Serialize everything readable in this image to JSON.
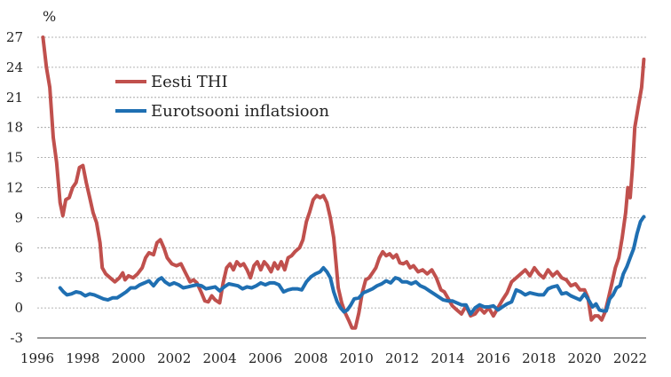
{
  "chart_data": {
    "type": "line",
    "unit_label": "%",
    "ylim": [
      -3,
      27
    ],
    "xlim": [
      1996,
      2022.7
    ],
    "y_ticks": [
      "-3",
      "0",
      "3",
      "6",
      "9",
      "12",
      "15",
      "18",
      "21",
      "24",
      "27"
    ],
    "x_ticks": [
      "1996",
      "1998",
      "2000",
      "2002",
      "2004",
      "2006",
      "2008",
      "2010",
      "2012",
      "2014",
      "2016",
      "2018",
      "2020",
      "2022"
    ],
    "grid": "horizontal dashed",
    "legend_position": "top-left",
    "series": [
      {
        "name": "Eesti THI",
        "color": "#c0504d",
        "points": [
          [
            1996.25,
            27.0
          ],
          [
            1996.4,
            24.0
          ],
          [
            1996.55,
            22.0
          ],
          [
            1996.7,
            17.0
          ],
          [
            1996.85,
            14.5
          ],
          [
            1997.0,
            10.5
          ],
          [
            1997.12,
            9.2
          ],
          [
            1997.25,
            10.8
          ],
          [
            1997.4,
            11.0
          ],
          [
            1997.55,
            12.0
          ],
          [
            1997.7,
            12.5
          ],
          [
            1997.85,
            14.0
          ],
          [
            1998.0,
            14.2
          ],
          [
            1998.15,
            12.5
          ],
          [
            1998.3,
            11.0
          ],
          [
            1998.45,
            9.5
          ],
          [
            1998.6,
            8.5
          ],
          [
            1998.75,
            6.5
          ],
          [
            1998.85,
            4.0
          ],
          [
            1999.0,
            3.4
          ],
          [
            1999.2,
            3.0
          ],
          [
            1999.4,
            2.6
          ],
          [
            1999.6,
            3.0
          ],
          [
            1999.75,
            3.5
          ],
          [
            1999.85,
            2.8
          ],
          [
            2000.0,
            3.2
          ],
          [
            2000.2,
            3.0
          ],
          [
            2000.4,
            3.4
          ],
          [
            2000.6,
            4.0
          ],
          [
            2000.75,
            5.0
          ],
          [
            2000.9,
            5.5
          ],
          [
            2001.1,
            5.3
          ],
          [
            2001.25,
            6.5
          ],
          [
            2001.4,
            6.8
          ],
          [
            2001.55,
            6.0
          ],
          [
            2001.7,
            5.0
          ],
          [
            2001.9,
            4.4
          ],
          [
            2002.1,
            4.2
          ],
          [
            2002.3,
            4.4
          ],
          [
            2002.5,
            3.5
          ],
          [
            2002.7,
            2.6
          ],
          [
            2002.85,
            2.8
          ],
          [
            2003.0,
            2.5
          ],
          [
            2003.2,
            1.5
          ],
          [
            2003.35,
            0.7
          ],
          [
            2003.5,
            0.6
          ],
          [
            2003.65,
            1.2
          ],
          [
            2003.8,
            0.8
          ],
          [
            2004.0,
            0.5
          ],
          [
            2004.15,
            2.5
          ],
          [
            2004.3,
            4.0
          ],
          [
            2004.45,
            4.4
          ],
          [
            2004.6,
            3.8
          ],
          [
            2004.75,
            4.6
          ],
          [
            2004.9,
            4.2
          ],
          [
            2005.05,
            4.4
          ],
          [
            2005.2,
            3.8
          ],
          [
            2005.35,
            3.0
          ],
          [
            2005.5,
            4.2
          ],
          [
            2005.65,
            4.6
          ],
          [
            2005.8,
            3.8
          ],
          [
            2005.95,
            4.6
          ],
          [
            2006.1,
            4.2
          ],
          [
            2006.25,
            3.6
          ],
          [
            2006.4,
            4.5
          ],
          [
            2006.55,
            3.9
          ],
          [
            2006.7,
            4.6
          ],
          [
            2006.85,
            3.8
          ],
          [
            2007.0,
            5.0
          ],
          [
            2007.15,
            5.2
          ],
          [
            2007.3,
            5.6
          ],
          [
            2007.5,
            6.0
          ],
          [
            2007.65,
            6.8
          ],
          [
            2007.8,
            8.6
          ],
          [
            2007.95,
            9.6
          ],
          [
            2008.1,
            10.8
          ],
          [
            2008.25,
            11.2
          ],
          [
            2008.4,
            11.0
          ],
          [
            2008.55,
            11.2
          ],
          [
            2008.7,
            10.5
          ],
          [
            2008.85,
            9.0
          ],
          [
            2009.0,
            7.0
          ],
          [
            2009.1,
            4.5
          ],
          [
            2009.2,
            2.0
          ],
          [
            2009.35,
            0.5
          ],
          [
            2009.5,
            -0.5
          ],
          [
            2009.65,
            -1.2
          ],
          [
            2009.8,
            -2.0
          ],
          [
            2009.95,
            -2.0
          ],
          [
            2010.1,
            -0.5
          ],
          [
            2010.25,
            1.5
          ],
          [
            2010.4,
            2.8
          ],
          [
            2010.55,
            3.0
          ],
          [
            2010.7,
            3.5
          ],
          [
            2010.85,
            4.0
          ],
          [
            2011.0,
            5.0
          ],
          [
            2011.15,
            5.6
          ],
          [
            2011.3,
            5.2
          ],
          [
            2011.45,
            5.4
          ],
          [
            2011.6,
            5.0
          ],
          [
            2011.75,
            5.3
          ],
          [
            2011.9,
            4.5
          ],
          [
            2012.05,
            4.4
          ],
          [
            2012.2,
            4.6
          ],
          [
            2012.35,
            4.0
          ],
          [
            2012.5,
            4.2
          ],
          [
            2012.7,
            3.6
          ],
          [
            2012.9,
            3.8
          ],
          [
            2013.1,
            3.4
          ],
          [
            2013.3,
            3.8
          ],
          [
            2013.5,
            3.0
          ],
          [
            2013.7,
            1.8
          ],
          [
            2013.85,
            1.6
          ],
          [
            2014.0,
            1.0
          ],
          [
            2014.2,
            0.2
          ],
          [
            2014.4,
            -0.2
          ],
          [
            2014.6,
            -0.6
          ],
          [
            2014.8,
            0.2
          ],
          [
            2015.0,
            -0.8
          ],
          [
            2015.2,
            -0.6
          ],
          [
            2015.4,
            0.0
          ],
          [
            2015.6,
            -0.5
          ],
          [
            2015.8,
            0.0
          ],
          [
            2016.0,
            -0.8
          ],
          [
            2016.2,
            0.0
          ],
          [
            2016.4,
            0.8
          ],
          [
            2016.6,
            1.5
          ],
          [
            2016.8,
            2.6
          ],
          [
            2017.0,
            3.0
          ],
          [
            2017.2,
            3.4
          ],
          [
            2017.4,
            3.8
          ],
          [
            2017.6,
            3.2
          ],
          [
            2017.8,
            4.0
          ],
          [
            2018.0,
            3.4
          ],
          [
            2018.2,
            3.0
          ],
          [
            2018.4,
            3.8
          ],
          [
            2018.6,
            3.2
          ],
          [
            2018.8,
            3.6
          ],
          [
            2019.0,
            3.0
          ],
          [
            2019.2,
            2.8
          ],
          [
            2019.4,
            2.2
          ],
          [
            2019.6,
            2.4
          ],
          [
            2019.8,
            1.8
          ],
          [
            2020.0,
            1.8
          ],
          [
            2020.15,
            1.0
          ],
          [
            2020.3,
            -1.2
          ],
          [
            2020.45,
            -0.8
          ],
          [
            2020.6,
            -0.8
          ],
          [
            2020.75,
            -1.2
          ],
          [
            2020.9,
            -0.4
          ],
          [
            2021.05,
            1.0
          ],
          [
            2021.2,
            2.5
          ],
          [
            2021.35,
            4.0
          ],
          [
            2021.5,
            5.0
          ],
          [
            2021.65,
            7.0
          ],
          [
            2021.8,
            9.5
          ],
          [
            2021.9,
            12.0
          ],
          [
            2022.0,
            11.0
          ],
          [
            2022.1,
            14.0
          ],
          [
            2022.2,
            18.0
          ],
          [
            2022.35,
            20.0
          ],
          [
            2022.5,
            22.0
          ],
          [
            2022.6,
            24.8
          ]
        ]
      },
      {
        "name": "Eurotsooni inflatsioon",
        "color": "#1f6fb2",
        "points": [
          [
            1997.0,
            2.0
          ],
          [
            1997.15,
            1.6
          ],
          [
            1997.3,
            1.3
          ],
          [
            1997.5,
            1.4
          ],
          [
            1997.7,
            1.6
          ],
          [
            1997.9,
            1.5
          ],
          [
            1998.1,
            1.2
          ],
          [
            1998.3,
            1.4
          ],
          [
            1998.5,
            1.3
          ],
          [
            1998.7,
            1.1
          ],
          [
            1998.9,
            0.9
          ],
          [
            1999.1,
            0.8
          ],
          [
            1999.3,
            1.0
          ],
          [
            1999.5,
            1.0
          ],
          [
            1999.7,
            1.3
          ],
          [
            1999.9,
            1.6
          ],
          [
            2000.1,
            2.0
          ],
          [
            2000.3,
            2.0
          ],
          [
            2000.5,
            2.3
          ],
          [
            2000.7,
            2.5
          ],
          [
            2000.9,
            2.7
          ],
          [
            2001.1,
            2.2
          ],
          [
            2001.3,
            2.8
          ],
          [
            2001.45,
            3.0
          ],
          [
            2001.6,
            2.6
          ],
          [
            2001.8,
            2.3
          ],
          [
            2002.0,
            2.5
          ],
          [
            2002.2,
            2.3
          ],
          [
            2002.4,
            2.0
          ],
          [
            2002.6,
            2.1
          ],
          [
            2002.8,
            2.2
          ],
          [
            2003.0,
            2.3
          ],
          [
            2003.2,
            2.2
          ],
          [
            2003.4,
            1.9
          ],
          [
            2003.6,
            2.0
          ],
          [
            2003.8,
            2.1
          ],
          [
            2004.0,
            1.7
          ],
          [
            2004.2,
            2.1
          ],
          [
            2004.4,
            2.4
          ],
          [
            2004.6,
            2.3
          ],
          [
            2004.8,
            2.2
          ],
          [
            2005.0,
            1.9
          ],
          [
            2005.2,
            2.1
          ],
          [
            2005.4,
            2.0
          ],
          [
            2005.6,
            2.2
          ],
          [
            2005.8,
            2.5
          ],
          [
            2006.0,
            2.3
          ],
          [
            2006.2,
            2.5
          ],
          [
            2006.4,
            2.5
          ],
          [
            2006.6,
            2.3
          ],
          [
            2006.8,
            1.6
          ],
          [
            2007.0,
            1.8
          ],
          [
            2007.2,
            1.9
          ],
          [
            2007.4,
            1.9
          ],
          [
            2007.6,
            1.8
          ],
          [
            2007.8,
            2.6
          ],
          [
            2008.0,
            3.1
          ],
          [
            2008.2,
            3.4
          ],
          [
            2008.4,
            3.6
          ],
          [
            2008.55,
            4.0
          ],
          [
            2008.7,
            3.6
          ],
          [
            2008.85,
            3.0
          ],
          [
            2009.0,
            1.6
          ],
          [
            2009.15,
            0.6
          ],
          [
            2009.3,
            0.0
          ],
          [
            2009.45,
            -0.4
          ],
          [
            2009.6,
            -0.2
          ],
          [
            2009.75,
            0.3
          ],
          [
            2009.9,
            0.9
          ],
          [
            2010.1,
            1.0
          ],
          [
            2010.3,
            1.5
          ],
          [
            2010.5,
            1.7
          ],
          [
            2010.7,
            1.9
          ],
          [
            2010.9,
            2.2
          ],
          [
            2011.1,
            2.4
          ],
          [
            2011.3,
            2.7
          ],
          [
            2011.5,
            2.5
          ],
          [
            2011.7,
            3.0
          ],
          [
            2011.85,
            2.9
          ],
          [
            2012.0,
            2.6
          ],
          [
            2012.2,
            2.6
          ],
          [
            2012.4,
            2.4
          ],
          [
            2012.6,
            2.6
          ],
          [
            2012.8,
            2.2
          ],
          [
            2013.0,
            2.0
          ],
          [
            2013.2,
            1.7
          ],
          [
            2013.4,
            1.4
          ],
          [
            2013.6,
            1.1
          ],
          [
            2013.8,
            0.8
          ],
          [
            2014.0,
            0.7
          ],
          [
            2014.2,
            0.7
          ],
          [
            2014.4,
            0.5
          ],
          [
            2014.6,
            0.3
          ],
          [
            2014.8,
            0.3
          ],
          [
            2015.0,
            -0.6
          ],
          [
            2015.2,
            0.0
          ],
          [
            2015.4,
            0.3
          ],
          [
            2015.6,
            0.1
          ],
          [
            2015.8,
            0.1
          ],
          [
            2016.0,
            0.2
          ],
          [
            2016.2,
            -0.2
          ],
          [
            2016.4,
            0.1
          ],
          [
            2016.6,
            0.4
          ],
          [
            2016.8,
            0.6
          ],
          [
            2017.0,
            1.8
          ],
          [
            2017.2,
            1.6
          ],
          [
            2017.4,
            1.3
          ],
          [
            2017.6,
            1.5
          ],
          [
            2017.8,
            1.4
          ],
          [
            2018.0,
            1.3
          ],
          [
            2018.2,
            1.3
          ],
          [
            2018.4,
            1.9
          ],
          [
            2018.6,
            2.1
          ],
          [
            2018.8,
            2.2
          ],
          [
            2019.0,
            1.4
          ],
          [
            2019.2,
            1.5
          ],
          [
            2019.4,
            1.2
          ],
          [
            2019.6,
            1.0
          ],
          [
            2019.8,
            0.8
          ],
          [
            2020.0,
            1.4
          ],
          [
            2020.2,
            0.7
          ],
          [
            2020.35,
            0.1
          ],
          [
            2020.5,
            0.4
          ],
          [
            2020.65,
            -0.2
          ],
          [
            2020.8,
            -0.3
          ],
          [
            2020.95,
            -0.3
          ],
          [
            2021.1,
            0.9
          ],
          [
            2021.25,
            1.3
          ],
          [
            2021.4,
            2.0
          ],
          [
            2021.55,
            2.2
          ],
          [
            2021.7,
            3.4
          ],
          [
            2021.85,
            4.1
          ],
          [
            2022.0,
            5.0
          ],
          [
            2022.15,
            5.9
          ],
          [
            2022.3,
            7.4
          ],
          [
            2022.45,
            8.6
          ],
          [
            2022.6,
            9.1
          ]
        ]
      }
    ]
  }
}
